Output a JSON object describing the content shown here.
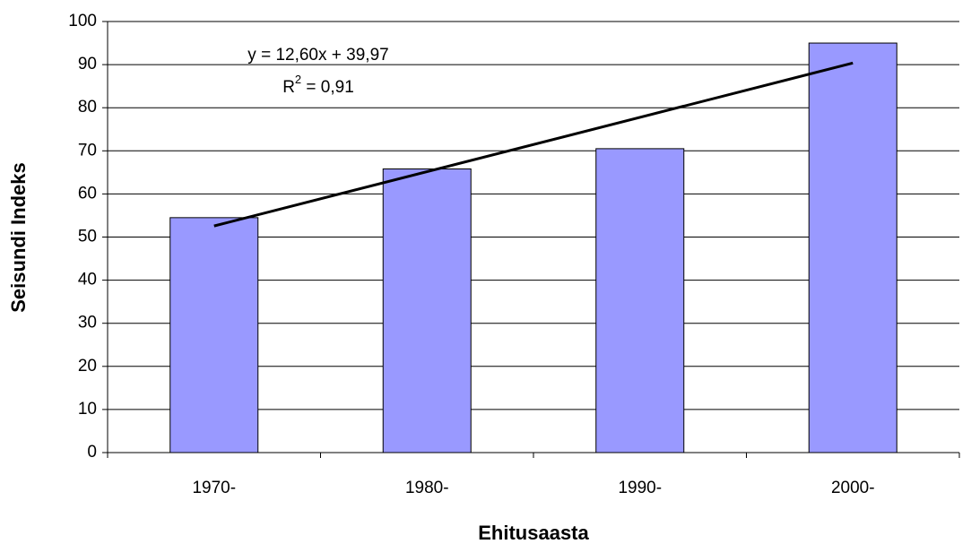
{
  "chart_data": {
    "type": "bar",
    "categories": [
      "1970-",
      "1980-",
      "1990-",
      "2000-"
    ],
    "values": [
      54.5,
      65.8,
      70.5,
      95
    ],
    "color": "#9999ff",
    "xlabel": "Ehitusaasta",
    "ylabel": "Seisundi Indeks",
    "ylim": [
      0,
      100
    ],
    "yticks": [
      0,
      10,
      20,
      30,
      40,
      50,
      60,
      70,
      80,
      90,
      100
    ],
    "grid": true,
    "trendline": {
      "slope": 12.6,
      "intercept": 39.97,
      "equation": "y = 12,60x + 39,97",
      "r2_base": "R",
      "r2_sup": "2",
      "r2_rest": " = 0,91"
    }
  }
}
